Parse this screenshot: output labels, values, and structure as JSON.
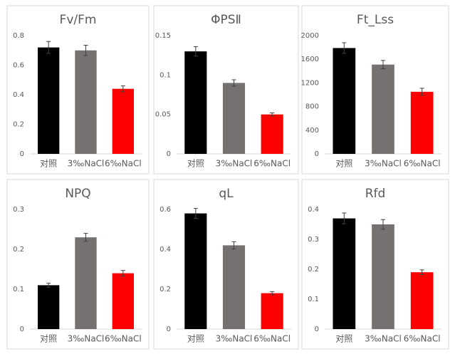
{
  "chart_data": [
    {
      "type": "bar",
      "title": "Fv/Fm",
      "categories": [
        "对照",
        "3‰NaCl",
        "6‰NaCl"
      ],
      "values": [
        0.72,
        0.7,
        0.44
      ],
      "errors": [
        0.04,
        0.035,
        0.02
      ],
      "colors": [
        "#000000",
        "#767171",
        "#ff0000"
      ],
      "ylim": [
        0,
        0.8
      ],
      "yticks": [
        0,
        0.2,
        0.4,
        0.6,
        0.8
      ]
    },
    {
      "type": "bar",
      "title": "ΦPSⅡ",
      "categories": [
        "对照",
        "3‰NaCl",
        "6‰NaCl"
      ],
      "values": [
        0.13,
        0.09,
        0.05
      ],
      "errors": [
        0.006,
        0.004,
        0.002
      ],
      "colors": [
        "#000000",
        "#767171",
        "#ff0000"
      ],
      "ylim": [
        0,
        0.15
      ],
      "yticks": [
        0,
        0.05,
        0.1,
        0.15
      ]
    },
    {
      "type": "bar",
      "title": "Ft_Lss",
      "categories": [
        "对照",
        "3‰NaCl",
        "6‰NaCl"
      ],
      "values": [
        1790,
        1510,
        1050
      ],
      "errors": [
        90,
        70,
        60
      ],
      "colors": [
        "#000000",
        "#767171",
        "#ff0000"
      ],
      "ylim": [
        0,
        2000
      ],
      "yticks": [
        0,
        400,
        800,
        1200,
        1600,
        2000
      ]
    },
    {
      "type": "bar",
      "title": "NPQ",
      "categories": [
        "对照",
        "3‰NaCl",
        "6‰NaCl"
      ],
      "values": [
        0.11,
        0.23,
        0.14
      ],
      "errors": [
        0.005,
        0.01,
        0.007
      ],
      "colors": [
        "#000000",
        "#767171",
        "#ff0000"
      ],
      "ylim": [
        0,
        0.3
      ],
      "yticks": [
        0,
        0.1,
        0.2,
        0.3
      ]
    },
    {
      "type": "bar",
      "title": "qL",
      "categories": [
        "对照",
        "3‰NaCl",
        "6‰NaCl"
      ],
      "values": [
        0.58,
        0.42,
        0.18
      ],
      "errors": [
        0.025,
        0.018,
        0.008
      ],
      "colors": [
        "#000000",
        "#767171",
        "#ff0000"
      ],
      "ylim": [
        0,
        0.6
      ],
      "yticks": [
        0,
        0.2,
        0.4,
        0.6
      ]
    },
    {
      "type": "bar",
      "title": "Rfd",
      "categories": [
        "对照",
        "3‰NaCl",
        "6‰NaCl"
      ],
      "values": [
        0.37,
        0.35,
        0.19
      ],
      "errors": [
        0.018,
        0.016,
        0.008
      ],
      "colors": [
        "#000000",
        "#767171",
        "#ff0000"
      ],
      "ylim": [
        0,
        0.4
      ],
      "yticks": [
        0,
        0.1,
        0.2,
        0.3,
        0.4
      ]
    }
  ]
}
